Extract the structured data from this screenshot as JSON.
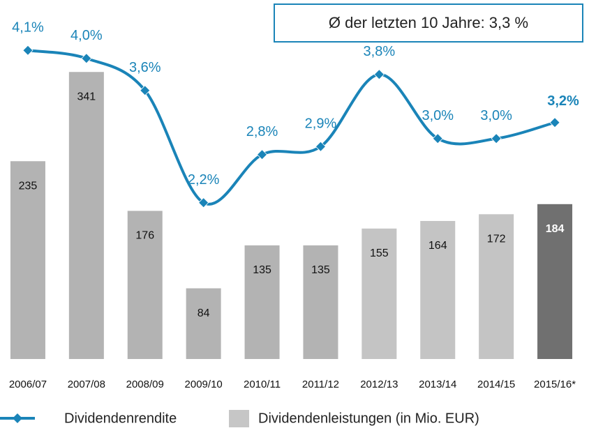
{
  "chart_data": {
    "type": "combo",
    "annotation": "Ø der letzten 10 Jahre: 3,3 %",
    "categories": [
      "2006/07",
      "2007/08",
      "2008/09",
      "2009/10",
      "2010/11",
      "2011/12",
      "2012/13",
      "2013/14",
      "2014/15",
      "2015/16*"
    ],
    "series": [
      {
        "name": "Dividendenrendite",
        "type": "line",
        "axis": "y2",
        "color": "#1a84b8",
        "values": [
          4.1,
          4.0,
          3.6,
          2.2,
          2.8,
          2.9,
          3.8,
          3.0,
          3.0,
          3.2
        ],
        "value_labels": [
          "4,1%",
          "4,0%",
          "3,6%",
          "2,2%",
          "2,8%",
          "2,9%",
          "3,8%",
          "3,0%",
          "3,0%",
          "3,2%"
        ]
      },
      {
        "name": "Dividendenleistungen (in Mio. EUR)",
        "type": "bar",
        "color": "#c6c6c6",
        "colors": [
          "#b3b3b3",
          "#b3b3b3",
          "#b3b3b3",
          "#b3b3b3",
          "#b3b3b3",
          "#b3b3b3",
          "#c4c4c4",
          "#c4c4c4",
          "#c4c4c4",
          "#707070"
        ],
        "values": [
          235,
          341,
          176,
          84,
          135,
          135,
          155,
          164,
          172,
          184
        ]
      }
    ],
    "ylim": [
      0,
      400
    ],
    "y2lim": [
      0.25,
      4.45
    ]
  }
}
